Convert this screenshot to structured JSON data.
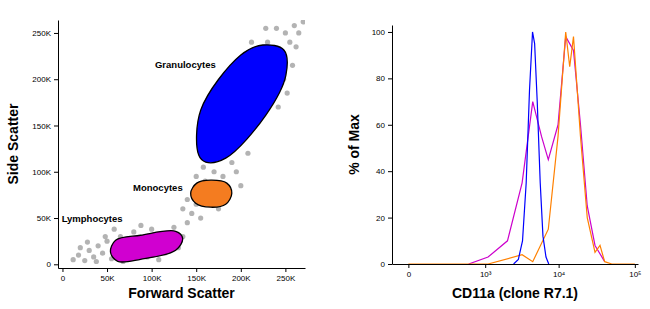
{
  "chart_data": [
    {
      "type": "scatter",
      "xlabel": "Forward Scatter",
      "ylabel": "Side Scatter",
      "xlim": [
        -5000,
        272000
      ],
      "ylim": [
        -4000,
        264000
      ],
      "xticks": [
        0,
        {
          "value": 50000,
          "label": "50K"
        },
        {
          "value": 100000,
          "label": "100K"
        },
        {
          "value": 150000,
          "label": "150K"
        },
        {
          "value": 200000,
          "label": "200K"
        },
        {
          "value": 250000,
          "label": "250K"
        }
      ],
      "yticks": [
        0,
        {
          "value": 50000,
          "label": "50K"
        },
        {
          "value": 100000,
          "label": "100K"
        },
        {
          "value": 150000,
          "label": "150K"
        },
        {
          "value": 200000,
          "label": "200K"
        },
        {
          "value": 250000,
          "label": "250K"
        }
      ],
      "series": [
        {
          "color": "#999999",
          "x": [
            12000,
            18000,
            25000,
            30000,
            35000,
            40000,
            45000,
            50000,
            55000,
            60000,
            65000,
            70000,
            75000,
            80000,
            85000,
            90000,
            95000,
            100000,
            105000,
            110000,
            115000,
            120000,
            125000,
            130000,
            20000,
            28000,
            38000,
            48000,
            58000,
            68000,
            88000,
            108000,
            135000,
            140000,
            145000,
            150000,
            155000,
            160000,
            165000,
            170000,
            175000,
            180000,
            185000,
            190000,
            140000,
            195000,
            200000,
            135000,
            158000,
            172000,
            188000,
            150000,
            185000,
            190000,
            195000,
            200000,
            205000,
            210000,
            215000,
            220000,
            225000,
            230000,
            235000,
            240000,
            245000,
            250000,
            255000,
            260000,
            265000,
            198000,
            212000,
            228000,
            180000,
            248000,
            258000,
            238000,
            270000,
            262000,
            208000,
            222000,
            176000,
            242000,
            252000
          ],
          "values": [
            5000,
            10000,
            4000,
            15000,
            8000,
            20000,
            12000,
            25000,
            6000,
            18000,
            30000,
            10000,
            22000,
            35000,
            15000,
            28000,
            8000,
            38000,
            20000,
            32000,
            12000,
            26000,
            40000,
            18000,
            18000,
            24000,
            3000,
            30000,
            38000,
            3000,
            42000,
            5000,
            30000,
            45000,
            55000,
            65000,
            50000,
            90000,
            72000,
            100000,
            60000,
            95000,
            80000,
            110000,
            70000,
            100000,
            85000,
            60000,
            105000,
            115000,
            125000,
            95000,
            140000,
            170000,
            130000,
            190000,
            150000,
            210000,
            175000,
            230000,
            195000,
            240000,
            215000,
            255000,
            225000,
            250000,
            240000,
            258000,
            250000,
            205000,
            240000,
            255000,
            180000,
            200000,
            215000,
            190000,
            262000,
            235000,
            120000,
            160000,
            150000,
            170000,
            185000
          ]
        }
      ],
      "gates": [
        {
          "name": "Granulocytes",
          "color": "#0000ff",
          "x": [
            152800,
            155100,
            200000,
            224700,
            248300,
            250600,
            228100,
            183100,
            160700
          ],
          "y": [
            118000,
            166700,
            226200,
            237000,
            231600,
            204500,
            161300,
            114700,
            110400
          ]
        },
        {
          "name": "Monocytes",
          "color": "#f47c20",
          "x": [
            143800,
            150600,
            166300,
            184300,
            189900,
            183100,
            166300,
            149400
          ],
          "y": [
            76800,
            87700,
            90900,
            87700,
            76800,
            64900,
            61700,
            66000
          ]
        },
        {
          "name": "Lymphocytes",
          "color": "#d000d0",
          "x": [
            53900,
            59600,
            87600,
            127000,
            134800,
            127000,
            87600,
            62000
          ],
          "y": [
            13000,
            26000,
            31400,
            35700,
            28100,
            15200,
            5400,
            3200
          ]
        }
      ]
    },
    {
      "type": "line",
      "xlabel": "CD11a (clone R7.1)",
      "ylabel": "% of Max",
      "log": "x",
      "xlim": [
        -70,
        110000
      ],
      "ylim": [
        0,
        103
      ],
      "xticks": [
        0,
        {
          "value": 1000,
          "label": "10³"
        },
        {
          "value": 10000,
          "label": "10⁴"
        },
        {
          "value": 100000,
          "label": "10⁵"
        }
      ],
      "yticks": [
        0,
        20,
        40,
        60,
        80,
        100
      ],
      "series": [
        {
          "color": "#cc00cc",
          "x": [
            564,
            1100,
            2060,
            3260,
            4530,
            5930,
            7300,
            9820,
            12400,
            15700,
            19400,
            23800,
            30100,
            40300
          ],
          "values": [
            0,
            3,
            10,
            35,
            70,
            55,
            45,
            60,
            98,
            92,
            60,
            25,
            8,
            1
          ]
        },
        {
          "color": "#ff8000",
          "x": [
            0,
            1100,
            3260,
            4530,
            7300,
            9820,
            12400,
            14000,
            15700,
            19400,
            23800,
            30100,
            35000,
            40300,
            50000,
            100000
          ],
          "values": [
            0,
            0,
            4,
            1,
            15,
            55,
            100,
            85,
            98,
            55,
            20,
            5,
            8,
            1,
            0,
            0
          ]
        },
        {
          "color": "#0000ff",
          "x": [
            2500,
            2900,
            3300,
            3700,
            4100,
            4500,
            4800,
            5200,
            5700,
            6200,
            6800,
            7400
          ],
          "values": [
            0,
            2,
            10,
            35,
            75,
            100,
            95,
            70,
            35,
            12,
            3,
            0
          ]
        }
      ]
    }
  ]
}
